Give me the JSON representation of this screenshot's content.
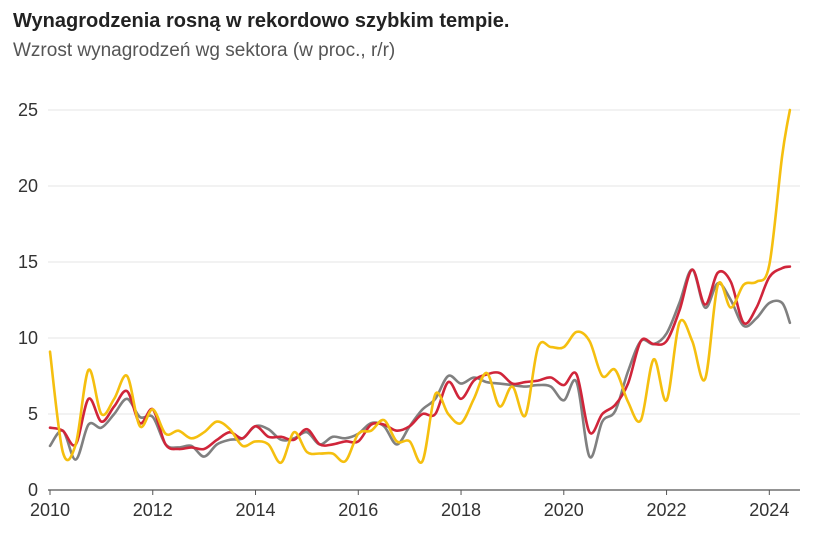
{
  "chart_data": {
    "type": "line",
    "title": "Wynagrodzenia rosną w rekordowo szybkim tempie.",
    "subtitle": "Wzrost wynagrodzeń wg sektora (w proc., r/r)",
    "xlabel": "",
    "ylabel": "",
    "xlim": [
      2010,
      2024.5
    ],
    "ylim": [
      0,
      25
    ],
    "x_ticks": [
      "2010",
      "2012",
      "2014",
      "2016",
      "2018",
      "2020",
      "2022",
      "2024"
    ],
    "y_ticks": [
      "0",
      "5",
      "10",
      "15",
      "20",
      "25"
    ],
    "grid": "horizontal",
    "legend": "none",
    "series": [
      {
        "color": "#d0253a",
        "x": [
          2010.0,
          2010.25,
          2010.5,
          2010.75,
          2011.0,
          2011.25,
          2011.5,
          2011.75,
          2012.0,
          2012.25,
          2012.5,
          2012.75,
          2013.0,
          2013.25,
          2013.5,
          2013.75,
          2014.0,
          2014.25,
          2014.5,
          2014.75,
          2015.0,
          2015.25,
          2015.5,
          2015.75,
          2016.0,
          2016.25,
          2016.5,
          2016.75,
          2017.0,
          2017.25,
          2017.5,
          2017.75,
          2018.0,
          2018.25,
          2018.5,
          2018.75,
          2019.0,
          2019.25,
          2019.5,
          2019.75,
          2020.0,
          2020.25,
          2020.5,
          2020.75,
          2021.0,
          2021.25,
          2021.5,
          2021.75,
          2022.0,
          2022.25,
          2022.5,
          2022.75,
          2023.0,
          2023.25,
          2023.5,
          2023.75,
          2024.0,
          2024.25,
          2024.4
        ],
        "values": [
          4.1,
          3.9,
          3.0,
          6.0,
          4.5,
          5.5,
          6.5,
          4.4,
          5.3,
          3.0,
          2.7,
          2.8,
          2.7,
          3.3,
          3.8,
          3.4,
          4.2,
          3.5,
          3.5,
          3.3,
          4.0,
          3.0,
          3.0,
          3.2,
          3.2,
          4.3,
          4.3,
          3.9,
          4.2,
          5.0,
          5.0,
          7.1,
          6.0,
          7.2,
          7.6,
          7.7,
          7.0,
          7.1,
          7.2,
          7.4,
          6.9,
          7.6,
          3.8,
          5.0,
          5.6,
          7.0,
          9.8,
          9.6,
          9.8,
          11.8,
          14.5,
          12.2,
          14.3,
          13.7,
          11.0,
          12.0,
          14.0,
          14.6,
          14.7
        ]
      },
      {
        "color": "#808080",
        "x": [
          2010.0,
          2010.25,
          2010.5,
          2010.75,
          2011.0,
          2011.25,
          2011.5,
          2011.75,
          2012.0,
          2012.25,
          2012.5,
          2012.75,
          2013.0,
          2013.25,
          2013.5,
          2013.75,
          2014.0,
          2014.25,
          2014.5,
          2014.75,
          2015.0,
          2015.25,
          2015.5,
          2015.75,
          2016.0,
          2016.25,
          2016.5,
          2016.75,
          2017.0,
          2017.25,
          2017.5,
          2017.75,
          2018.0,
          2018.25,
          2018.5,
          2018.75,
          2019.0,
          2019.25,
          2019.5,
          2019.75,
          2020.0,
          2020.25,
          2020.5,
          2020.75,
          2021.0,
          2021.25,
          2021.5,
          2021.75,
          2022.0,
          2022.25,
          2022.5,
          2022.75,
          2023.0,
          2023.25,
          2023.5,
          2023.75,
          2024.0,
          2024.25,
          2024.4
        ],
        "values": [
          2.9,
          3.9,
          2.0,
          4.3,
          4.1,
          5.0,
          6.0,
          4.8,
          4.8,
          3.0,
          2.8,
          2.9,
          2.2,
          3.0,
          3.3,
          3.4,
          4.2,
          4.0,
          3.3,
          3.4,
          3.8,
          3.0,
          3.5,
          3.4,
          3.7,
          4.4,
          4.2,
          3.0,
          4.2,
          5.3,
          6.0,
          7.5,
          7.0,
          7.4,
          7.1,
          7.0,
          6.9,
          6.8,
          6.9,
          6.8,
          5.9,
          7.1,
          2.2,
          4.5,
          5.2,
          7.8,
          9.8,
          9.6,
          10.3,
          12.3,
          14.5,
          12.0,
          13.6,
          12.5,
          10.8,
          11.3,
          12.3,
          12.3,
          11.0
        ]
      },
      {
        "color": "#f5bf0f",
        "x": [
          2010.0,
          2010.25,
          2010.5,
          2010.75,
          2011.0,
          2011.25,
          2011.5,
          2011.75,
          2012.0,
          2012.25,
          2012.5,
          2012.75,
          2013.0,
          2013.25,
          2013.5,
          2013.75,
          2014.0,
          2014.25,
          2014.5,
          2014.75,
          2015.0,
          2015.25,
          2015.5,
          2015.75,
          2016.0,
          2016.25,
          2016.5,
          2016.75,
          2017.0,
          2017.25,
          2017.5,
          2017.75,
          2018.0,
          2018.25,
          2018.5,
          2018.75,
          2019.0,
          2019.25,
          2019.5,
          2019.75,
          2020.0,
          2020.25,
          2020.5,
          2020.75,
          2021.0,
          2021.25,
          2021.5,
          2021.75,
          2022.0,
          2022.25,
          2022.5,
          2022.75,
          2023.0,
          2023.25,
          2023.5,
          2023.75,
          2024.0,
          2024.25,
          2024.4
        ],
        "values": [
          9.1,
          2.5,
          3.0,
          7.9,
          5.0,
          6.0,
          7.5,
          4.2,
          5.3,
          3.7,
          3.9,
          3.4,
          3.8,
          4.5,
          4.0,
          2.9,
          3.2,
          3.0,
          1.8,
          3.8,
          2.5,
          2.4,
          2.4,
          1.9,
          3.7,
          3.9,
          4.6,
          3.2,
          3.2,
          1.9,
          6.3,
          5.0,
          4.4,
          6.0,
          7.7,
          5.5,
          6.8,
          4.9,
          9.4,
          9.4,
          9.4,
          10.4,
          9.8,
          7.5,
          7.9,
          5.8,
          4.6,
          8.6,
          5.9,
          11.0,
          9.8,
          7.3,
          13.5,
          12.0,
          13.5,
          13.7,
          14.8,
          22.0,
          25.0
        ]
      }
    ]
  }
}
